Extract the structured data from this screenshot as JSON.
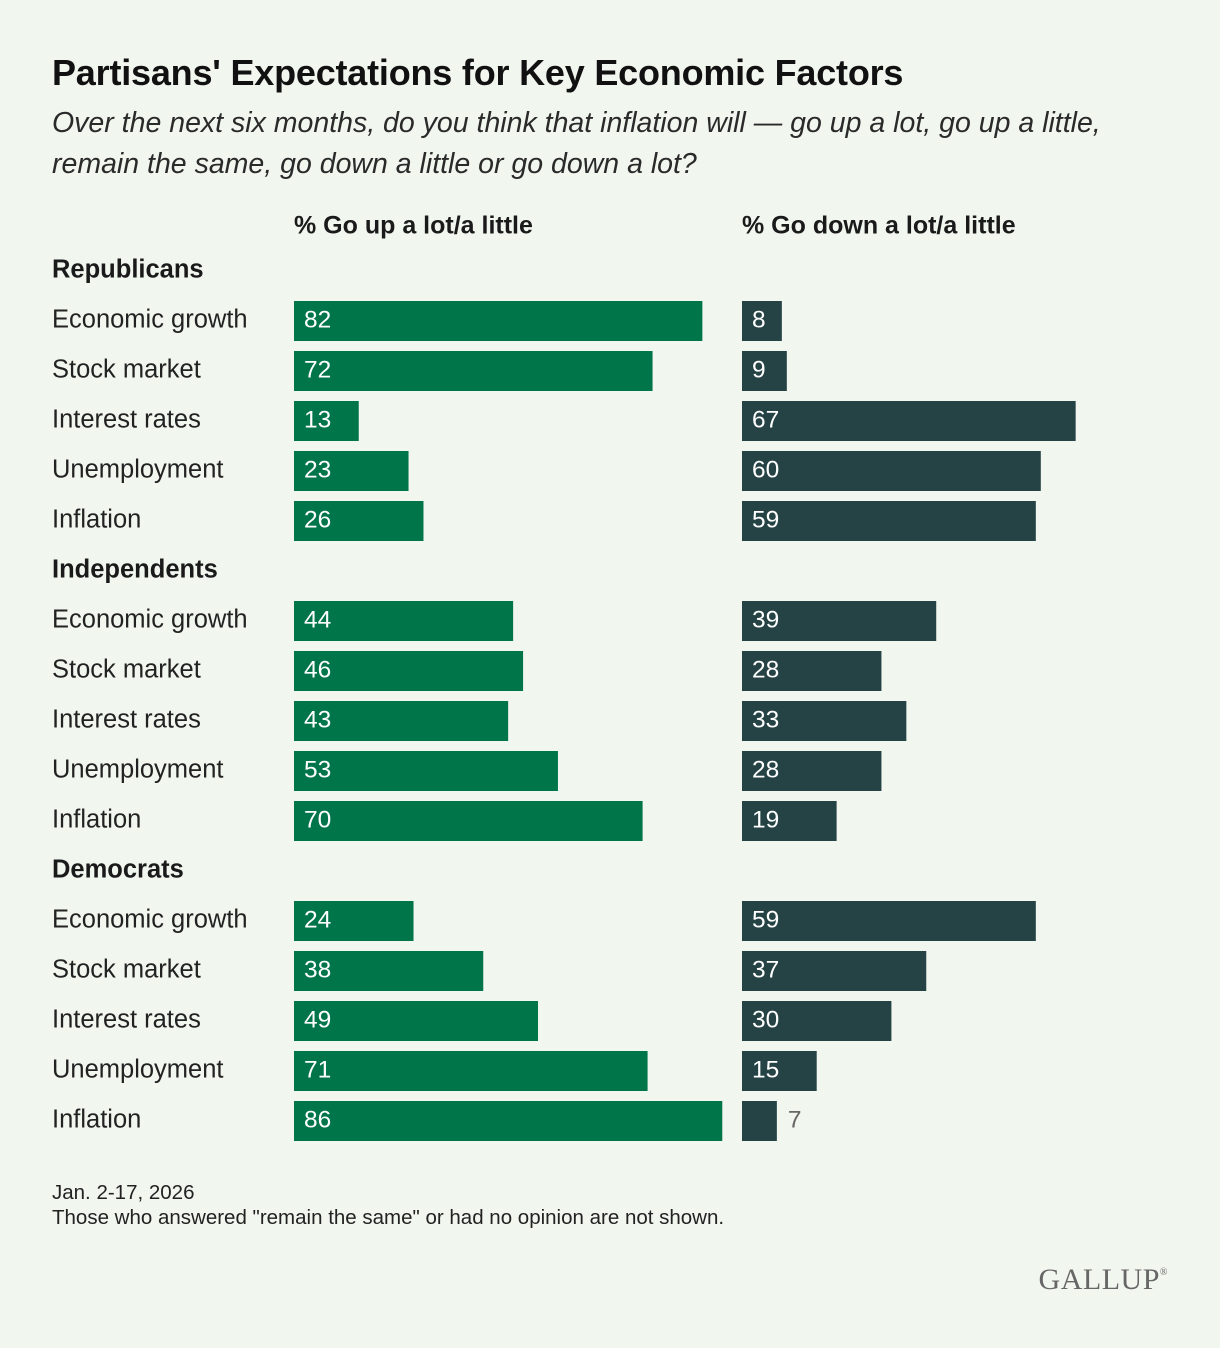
{
  "chart_data": {
    "type": "bar",
    "title": "Partisans' Expectations for Key Economic Factors",
    "subtitle": "Over the next six months, do you think that inflation will — go up a lot, go up a little, remain the same, go down a little or go down a lot?",
    "series": [
      {
        "name": "% Go up a lot/a little",
        "color": "#00754a"
      },
      {
        "name": "% Go down a lot/a little",
        "color": "#254345"
      }
    ],
    "groups": [
      {
        "name": "Republicans",
        "rows": [
          {
            "label": "Economic growth",
            "up": 82,
            "down": 8
          },
          {
            "label": "Stock market",
            "up": 72,
            "down": 9
          },
          {
            "label": "Interest rates",
            "up": 13,
            "down": 67
          },
          {
            "label": "Unemployment",
            "up": 23,
            "down": 60
          },
          {
            "label": "Inflation",
            "up": 26,
            "down": 59
          }
        ]
      },
      {
        "name": "Independents",
        "rows": [
          {
            "label": "Economic growth",
            "up": 44,
            "down": 39
          },
          {
            "label": "Stock market",
            "up": 46,
            "down": 28
          },
          {
            "label": "Interest rates",
            "up": 43,
            "down": 33
          },
          {
            "label": "Unemployment",
            "up": 53,
            "down": 28
          },
          {
            "label": "Inflation",
            "up": 70,
            "down": 19
          }
        ]
      },
      {
        "name": "Democrats",
        "rows": [
          {
            "label": "Economic growth",
            "up": 24,
            "down": 59
          },
          {
            "label": "Stock market",
            "up": 38,
            "down": 37
          },
          {
            "label": "Interest rates",
            "up": 49,
            "down": 30
          },
          {
            "label": "Unemployment",
            "up": 71,
            "down": 15
          },
          {
            "label": "Inflation",
            "up": 86,
            "down": 7
          }
        ]
      }
    ],
    "xlim": [
      0,
      100
    ]
  },
  "footer": {
    "date": "Jan. 2-17, 2026",
    "note": "Those who answered \"remain the same\" or had no opinion are not shown."
  },
  "brand": {
    "logo": "GALLUP",
    "mark": "®"
  }
}
